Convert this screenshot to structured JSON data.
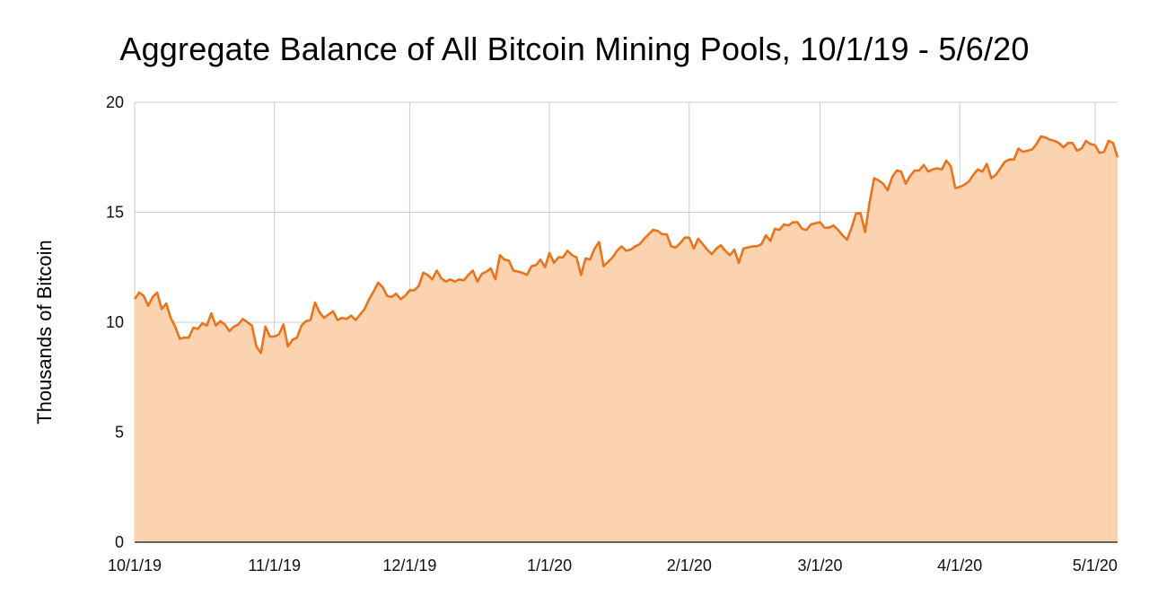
{
  "chart_data": {
    "type": "area",
    "title": "Aggregate Balance of All Bitcoin Mining Pools, 10/1/19 - 5/6/20",
    "xlabel": "",
    "ylabel": "Thousands of Bitcoin",
    "ylim": [
      0,
      20
    ],
    "y_ticks": [
      "0",
      "5",
      "10",
      "15",
      "20"
    ],
    "x_ticks": [
      "10/1/19",
      "11/1/19",
      "12/1/19",
      "1/1/20",
      "2/1/20",
      "3/1/20",
      "4/1/20",
      "5/1/20"
    ],
    "x_range": [
      "2019-10-01",
      "2020-05-06"
    ],
    "grid": true,
    "legend": "none",
    "colors": {
      "line": "#e8741e",
      "fill": "#fcd3b0",
      "grid": "#cccccc",
      "axis": "#333333"
    },
    "series": [
      {
        "x": [
          "2019-10-01",
          "2019-10-02",
          "2019-10-03",
          "2019-10-04",
          "2019-10-05",
          "2019-10-06",
          "2019-10-07",
          "2019-10-08",
          "2019-10-09",
          "2019-10-10",
          "2019-10-11",
          "2019-10-12",
          "2019-10-13",
          "2019-10-14",
          "2019-10-15",
          "2019-10-16",
          "2019-10-17",
          "2019-10-18",
          "2019-10-19",
          "2019-10-20",
          "2019-10-21",
          "2019-10-22",
          "2019-10-23",
          "2019-10-24",
          "2019-10-25",
          "2019-10-26",
          "2019-10-27",
          "2019-10-28",
          "2019-10-29",
          "2019-10-30",
          "2019-10-31",
          "2019-11-01",
          "2019-11-02",
          "2019-11-03",
          "2019-11-04",
          "2019-11-05",
          "2019-11-06",
          "2019-11-07",
          "2019-11-08",
          "2019-11-09",
          "2019-11-10",
          "2019-11-11",
          "2019-11-12",
          "2019-11-13",
          "2019-11-14",
          "2019-11-15",
          "2019-11-16",
          "2019-11-17",
          "2019-11-18",
          "2019-11-19",
          "2019-11-20",
          "2019-11-21",
          "2019-11-22",
          "2019-11-23",
          "2019-11-24",
          "2019-11-25",
          "2019-11-26",
          "2019-11-27",
          "2019-11-28",
          "2019-11-29",
          "2019-11-30",
          "2019-12-01",
          "2019-12-02",
          "2019-12-03",
          "2019-12-04",
          "2019-12-05",
          "2019-12-06",
          "2019-12-07",
          "2019-12-08",
          "2019-12-09",
          "2019-12-10",
          "2019-12-11",
          "2019-12-12",
          "2019-12-13",
          "2019-12-14",
          "2019-12-15",
          "2019-12-16",
          "2019-12-17",
          "2019-12-18",
          "2019-12-19",
          "2019-12-20",
          "2019-12-21",
          "2019-12-22",
          "2019-12-23",
          "2019-12-24",
          "2019-12-25",
          "2019-12-26",
          "2019-12-27",
          "2019-12-28",
          "2019-12-29",
          "2019-12-30",
          "2019-12-31",
          "2020-01-01",
          "2020-01-02",
          "2020-01-03",
          "2020-01-04",
          "2020-01-05",
          "2020-01-06",
          "2020-01-07",
          "2020-01-08",
          "2020-01-09",
          "2020-01-10",
          "2020-01-11",
          "2020-01-12",
          "2020-01-13",
          "2020-01-14",
          "2020-01-15",
          "2020-01-16",
          "2020-01-17",
          "2020-01-18",
          "2020-01-19",
          "2020-01-20",
          "2020-01-21",
          "2020-01-22",
          "2020-01-23",
          "2020-01-24",
          "2020-01-25",
          "2020-01-26",
          "2020-01-27",
          "2020-01-28",
          "2020-01-29",
          "2020-01-30",
          "2020-01-31",
          "2020-02-01",
          "2020-02-02",
          "2020-02-03",
          "2020-02-04",
          "2020-02-05",
          "2020-02-06",
          "2020-02-07",
          "2020-02-08",
          "2020-02-09",
          "2020-02-10",
          "2020-02-11",
          "2020-02-12",
          "2020-02-13",
          "2020-02-14",
          "2020-02-15",
          "2020-02-16",
          "2020-02-17",
          "2020-02-18",
          "2020-02-19",
          "2020-02-20",
          "2020-02-21",
          "2020-02-22",
          "2020-02-23",
          "2020-02-24",
          "2020-02-25",
          "2020-02-26",
          "2020-02-27",
          "2020-02-28",
          "2020-02-29",
          "2020-03-01",
          "2020-03-02",
          "2020-03-03",
          "2020-03-04",
          "2020-03-05",
          "2020-03-06",
          "2020-03-07",
          "2020-03-08",
          "2020-03-09",
          "2020-03-10",
          "2020-03-11",
          "2020-03-12",
          "2020-03-13",
          "2020-03-14",
          "2020-03-15",
          "2020-03-16",
          "2020-03-17",
          "2020-03-18",
          "2020-03-19",
          "2020-03-20",
          "2020-03-21",
          "2020-03-22",
          "2020-03-23",
          "2020-03-24",
          "2020-03-25",
          "2020-03-26",
          "2020-03-27",
          "2020-03-28",
          "2020-03-29",
          "2020-03-30",
          "2020-03-31",
          "2020-04-01",
          "2020-04-02",
          "2020-04-03",
          "2020-04-04",
          "2020-04-05",
          "2020-04-06",
          "2020-04-07",
          "2020-04-08",
          "2020-04-09",
          "2020-04-10",
          "2020-04-11",
          "2020-04-12",
          "2020-04-13",
          "2020-04-14",
          "2020-04-15",
          "2020-04-16",
          "2020-04-17",
          "2020-04-18",
          "2020-04-19",
          "2020-04-20",
          "2020-04-21",
          "2020-04-22",
          "2020-04-23",
          "2020-04-24",
          "2020-04-25",
          "2020-04-26",
          "2020-04-27",
          "2020-04-28",
          "2020-04-29",
          "2020-04-30",
          "2020-05-01",
          "2020-05-02",
          "2020-05-03",
          "2020-05-04",
          "2020-05-05",
          "2020-05-06"
        ],
        "values": [
          11.05,
          11.35,
          11.2,
          10.75,
          11.15,
          11.35,
          10.6,
          10.85,
          10.2,
          9.8,
          9.25,
          9.3,
          9.3,
          9.75,
          9.7,
          9.95,
          9.85,
          10.4,
          9.85,
          10.05,
          9.9,
          9.6,
          9.8,
          9.9,
          10.15,
          10.0,
          9.85,
          8.9,
          8.6,
          9.8,
          9.35,
          9.35,
          9.45,
          9.9,
          8.9,
          9.2,
          9.3,
          9.85,
          10.05,
          10.1,
          10.9,
          10.45,
          10.2,
          10.35,
          10.5,
          10.1,
          10.2,
          10.15,
          10.3,
          10.1,
          10.35,
          10.6,
          11.05,
          11.4,
          11.8,
          11.6,
          11.2,
          11.15,
          11.3,
          11.05,
          11.2,
          11.45,
          11.45,
          11.65,
          12.25,
          12.15,
          11.95,
          12.35,
          12.0,
          11.85,
          11.95,
          11.85,
          11.95,
          11.9,
          12.15,
          12.35,
          11.85,
          12.2,
          12.3,
          12.45,
          11.95,
          13.05,
          12.85,
          12.8,
          12.35,
          12.3,
          12.25,
          12.15,
          12.55,
          12.6,
          12.85,
          12.5,
          13.15,
          12.7,
          12.95,
          12.95,
          13.25,
          13.05,
          12.95,
          12.15,
          12.9,
          12.85,
          13.35,
          13.65,
          12.55,
          12.75,
          12.95,
          13.25,
          13.45,
          13.25,
          13.3,
          13.45,
          13.55,
          13.8,
          14.0,
          14.2,
          14.15,
          14.0,
          14.0,
          13.45,
          13.4,
          13.6,
          13.85,
          13.85,
          13.35,
          13.8,
          13.55,
          13.3,
          13.1,
          13.35,
          13.5,
          13.25,
          13.05,
          13.3,
          12.7,
          13.35,
          13.4,
          13.45,
          13.45,
          13.55,
          13.95,
          13.7,
          14.25,
          14.2,
          14.45,
          14.4,
          14.55,
          14.55,
          14.25,
          14.2,
          14.45,
          14.5,
          14.55,
          14.3,
          14.3,
          14.4,
          14.2,
          13.95,
          13.75,
          14.3,
          14.95,
          14.95,
          14.1,
          15.45,
          16.55,
          16.45,
          16.3,
          16.0,
          16.6,
          16.9,
          16.85,
          16.3,
          16.65,
          16.9,
          16.9,
          17.15,
          16.85,
          16.95,
          17.0,
          16.95,
          17.35,
          17.1,
          16.1,
          16.15,
          16.25,
          16.4,
          16.7,
          16.95,
          16.85,
          17.2,
          16.55,
          16.7,
          17.0,
          17.3,
          17.4,
          17.4,
          17.9,
          17.75,
          17.8,
          17.85,
          18.1,
          18.45,
          18.4,
          18.3,
          18.25,
          18.15,
          17.95,
          18.15,
          18.15,
          17.8,
          17.9,
          18.25,
          18.1,
          18.05,
          17.7,
          17.75,
          18.25,
          18.15,
          17.5
        ]
      }
    ]
  }
}
